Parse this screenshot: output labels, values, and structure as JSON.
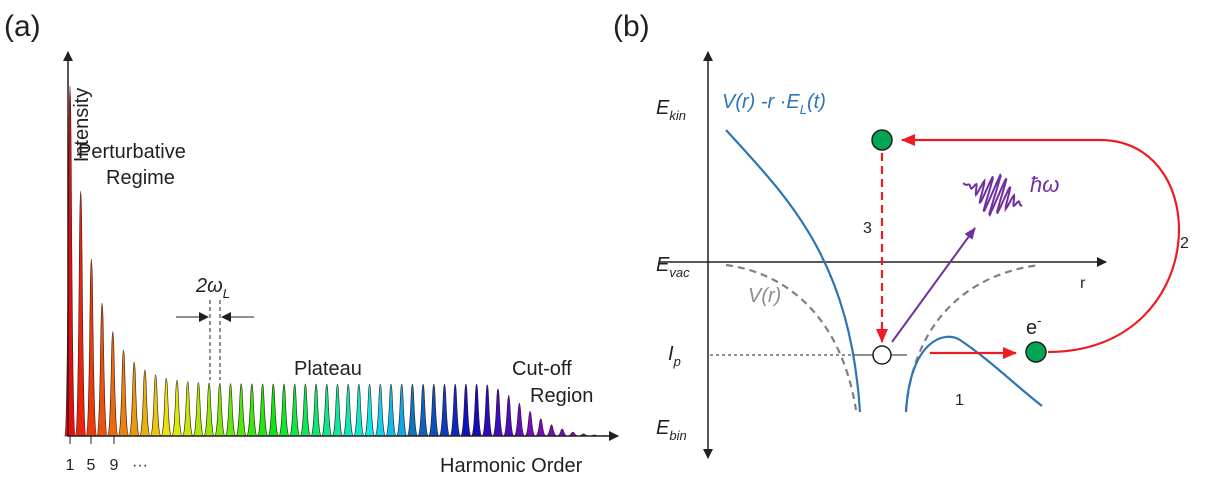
{
  "panel_a": {
    "label": "(a)",
    "y_axis": "Intensity",
    "regime": [
      "Perturbative",
      "Regime"
    ],
    "spacing": {
      "main": "2ω",
      "sub": "L"
    },
    "plateau": "Plateau",
    "cutoff": [
      "Cut-off",
      "Region"
    ],
    "order_ticks": [
      1,
      5,
      9,
      "···"
    ],
    "x_axis": "Harmonic Order"
  },
  "panel_b": {
    "label": "(b)",
    "e_kin": {
      "main": "E",
      "sub": "kin"
    },
    "e_vac": {
      "main": "E",
      "sub": "vac"
    },
    "ip": {
      "main": "I",
      "sub": "p"
    },
    "e_bin": {
      "main": "E",
      "sub": "bin"
    },
    "dressed_potential": {
      "main": "V(r) -r ·E",
      "sub": "L",
      "tail": "(t)"
    },
    "potential": "V(r)",
    "r_axis": "r",
    "photon": "ħω",
    "electron": {
      "main": "e",
      "sup": "-"
    },
    "step_1": "1",
    "step_2": "2",
    "step_3": "3"
  }
}
